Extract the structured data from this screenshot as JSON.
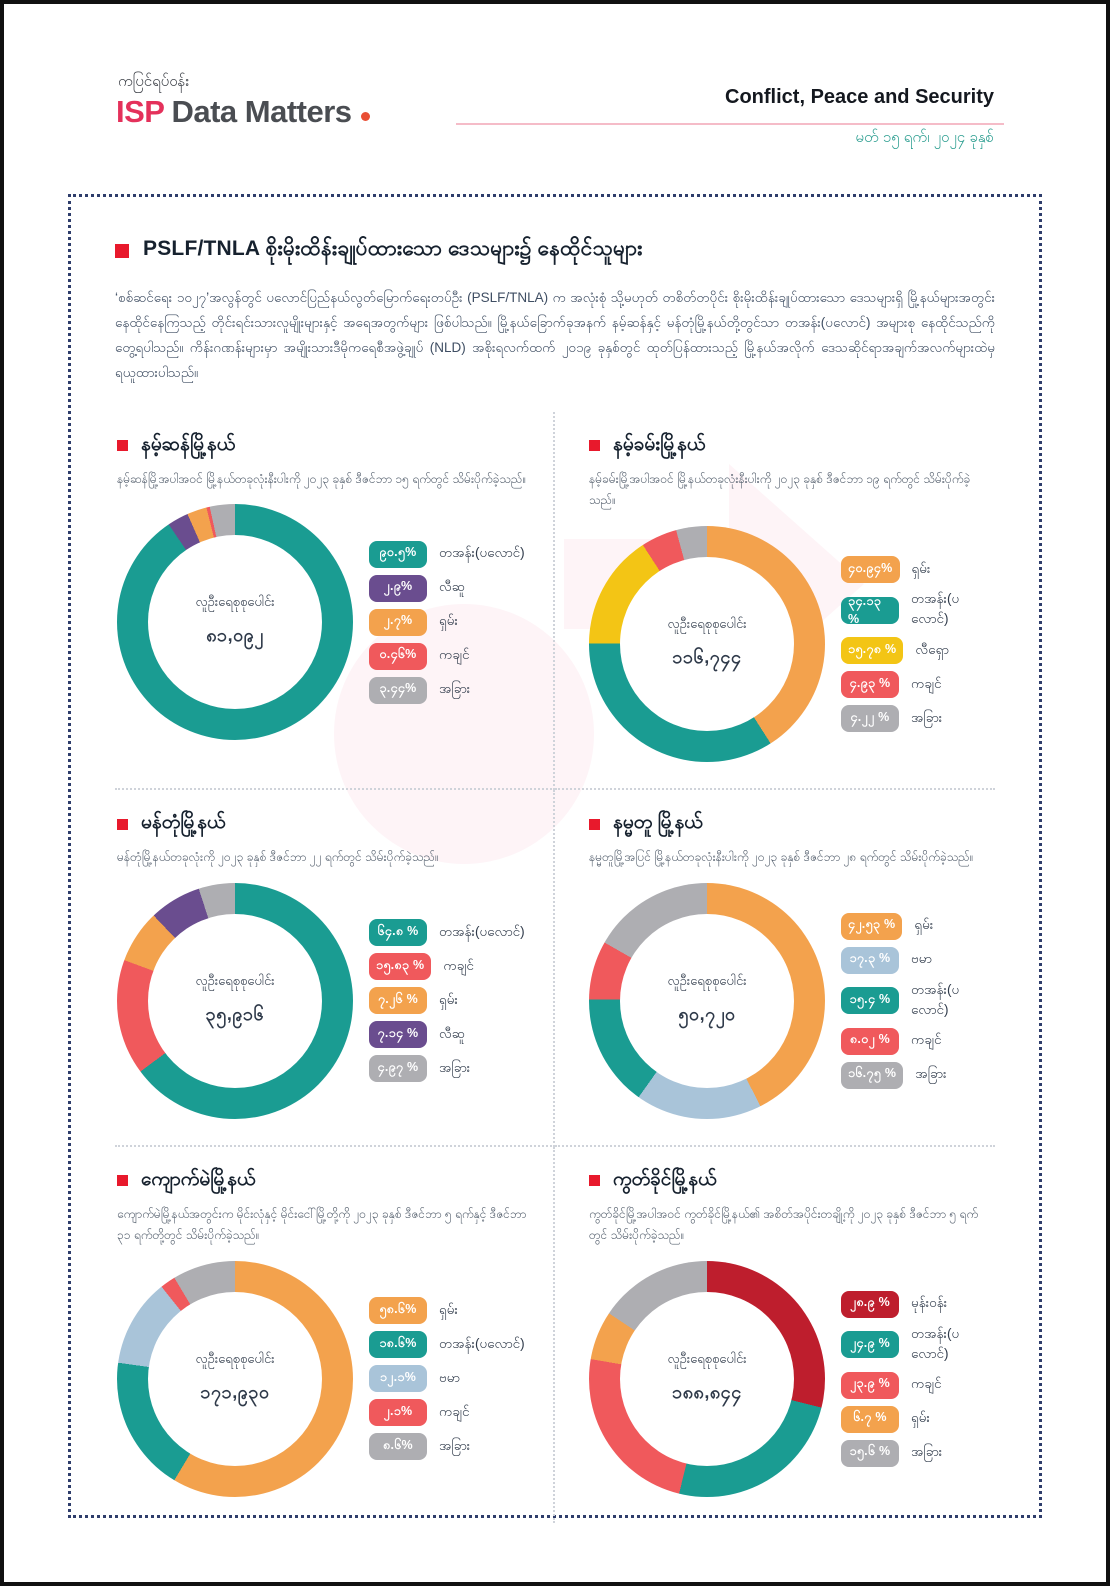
{
  "header": {
    "kicker": "ကပြင်ရပ်ဝန်း",
    "logo_isp": "ISP",
    "logo_rest": "Data Matters",
    "topic": "Conflict, Peace and Security",
    "date": "မတ် ၁၅ ရက်၊ ၂၀၂၄ ခုနှစ်"
  },
  "report": {
    "title": "PSLF/TNLA စိုးမိုးထိန်းချုပ်ထားသော ဒေသများ၌ နေထိုင်သူများ",
    "intro": "‘စစ်ဆင်ရေး ၁၀၂၇’အလွန်တွင် ပလောင်ပြည်နယ်လွတ်မြောက်ရေးတပ်ဦး (PSLF/TNLA) က အလုံးစုံ သို့မဟုတ် တစိတ်တပိုင်း စိုးမိုးထိန်းချုပ်ထားသော ဒေသများရှိ မြို့နယ်များအတွင်း နေထိုင်နေကြသည့် တိုင်းရင်းသားလူမျိုးများနှင့် အရေအတွက်များ ဖြစ်ပါသည်။ မြို့နယ်ခြောက်ခုအနက် နမ့်ဆန်နှင့် မန်တုံမြို့နယ်တို့တွင်သာ တအန်း(ပလောင်) အများစု နေထိုင်သည်ကို တွေ့ရပါသည်။ ကိန်းဂဏန်းများမှာ အမျိုးသားဒီမိုကရေစီအဖွဲ့ချုပ် (NLD) အစိုးရလက်ထက် ၂၀၁၉ ခုနှစ်တွင် ထုတ်ပြန်ထားသည့် မြို့နယ်အလိုက် ဒေသဆိုင်ရာအချက်အလက်များထဲမှ ရယူထားပါသည်။"
  },
  "colors": {
    "accent_red": "#E8192C",
    "brand_pink": "#E4315B",
    "brand_dot_orange": "#E94F35",
    "date_teal": "#2A9D8F",
    "dotted_border_navy": "#2E3D6B",
    "teal": "#1A9C92",
    "orange": "#F3A24D",
    "purple": "#6A4D8F",
    "red": "#F0595C",
    "gray": "#AEAEB2",
    "yellow": "#F3C515",
    "light_blue": "#A9C4D9",
    "crimson": "#BE1E2D"
  },
  "chart_data": [
    {
      "type": "pie",
      "title": "နမ့်ဆန်မြို့နယ်",
      "subtitle": "နမ့်ဆန်မြို့အပါအဝင် မြို့နယ်တခုလုံးနီးပါးကို ၂၀၂၃ ခုနှစ် ဒီဇင်ဘာ ၁၅ ရက်တွင် သိမ်းပိုက်ခဲ့သည်။",
      "center_label": "လူဦးရေစုစုပေါင်း",
      "total_label": "၈၁,၀၉၂",
      "total_value": 81092,
      "legend_position": "right",
      "slices": [
        {
          "label": "တအန်း(ပလောင်)",
          "pct_label": "၉၀.၅%",
          "value": 90.5,
          "color": "#1A9C92"
        },
        {
          "label": "လီဆူ",
          "pct_label": "၂.၉%",
          "value": 2.9,
          "color": "#6A4D8F"
        },
        {
          "label": "ရှမ်း",
          "pct_label": "၂.၇%",
          "value": 2.7,
          "color": "#F3A24D"
        },
        {
          "label": "ကချင်",
          "pct_label": "၀.၄၆%",
          "value": 0.46,
          "color": "#F0595C"
        },
        {
          "label": "အခြား",
          "pct_label": "၃.၄၄%",
          "value": 3.44,
          "color": "#AEAEB2"
        }
      ]
    },
    {
      "type": "pie",
      "title": "နမ့်ခမ်းမြို့နယ်",
      "subtitle": "နမ့်ခမ်းမြို့အပါအဝင် မြို့နယ်တခုလုံးနီးပါးကို ၂၀၂၃ ခုနှစ် ဒီဇင်ဘာ ၁၉ ရက်တွင် သိမ်းပိုက်ခဲ့သည်။",
      "center_label": "လူဦးရေစုစုပေါင်း",
      "total_label": "၁၁၆,၇၄၄",
      "total_value": 116744,
      "legend_position": "right",
      "slices": [
        {
          "label": "ရှမ်း",
          "pct_label": "၄၀.၉၄%",
          "value": 40.94,
          "color": "#F3A24D"
        },
        {
          "label": "တအန်း(ပလောင်)",
          "pct_label": "၃၄.၁၃ %",
          "value": 34.13,
          "color": "#1A9C92"
        },
        {
          "label": "လီရှော",
          "pct_label": "၁၅.၇၈ %",
          "value": 15.78,
          "color": "#F3C515"
        },
        {
          "label": "ကချင်",
          "pct_label": "၄.၉၃ %",
          "value": 4.93,
          "color": "#F0595C"
        },
        {
          "label": "အခြား",
          "pct_label": "၄.၂၂ %",
          "value": 4.22,
          "color": "#AEAEB2"
        }
      ]
    },
    {
      "type": "pie",
      "title": "မန်တုံမြို့နယ်",
      "subtitle": "မန်တုံမြို့နယ်တခုလုံးကို ၂၀၂၃ ခုနှစ် ဒီဇင်ဘာ ၂၂ ရက်တွင် သိမ်းပိုက်ခဲ့သည်။",
      "center_label": "လူဦးရေစုစုပေါင်း",
      "total_label": "၃၅,၉၁၆",
      "total_value": 35916,
      "legend_position": "right",
      "slices": [
        {
          "label": "တအန်း(ပလောင်)",
          "pct_label": "၆၄.၈ %",
          "value": 64.8,
          "color": "#1A9C92"
        },
        {
          "label": "ကချင်",
          "pct_label": "၁၅.၈၃ %",
          "value": 15.83,
          "color": "#F0595C"
        },
        {
          "label": "ရှမ်း",
          "pct_label": "၇.၂၆ %",
          "value": 7.26,
          "color": "#F3A24D"
        },
        {
          "label": "လီဆူ",
          "pct_label": "၇.၁၄ %",
          "value": 7.14,
          "color": "#6A4D8F"
        },
        {
          "label": "အခြား",
          "pct_label": "၄.၉၇ %",
          "value": 4.97,
          "color": "#AEAEB2"
        }
      ]
    },
    {
      "type": "pie",
      "title": "နမ္မတူ မြို့နယ်",
      "subtitle": "နမ္မတူမြို့အပြင် မြို့နယ်တခုလုံးနီးပါးကို ၂၀၂၃ ခုနှစ် ဒီဇင်ဘာ ၂၈ ရက်တွင် သိမ်းပိုက်ခဲ့သည်။",
      "center_label": "လူဦးရေစုစုပေါင်း",
      "total_label": "၅၀,၇၂၀",
      "total_value": 50720,
      "legend_position": "right",
      "slices": [
        {
          "label": "ရှမ်း",
          "pct_label": "၄၂.၅၃ %",
          "value": 42.53,
          "color": "#F3A24D"
        },
        {
          "label": "ဗမာ",
          "pct_label": "၁၇.၃ %",
          "value": 17.3,
          "color": "#A9C4D9"
        },
        {
          "label": "တအန်း(ပလောင်)",
          "pct_label": "၁၅.၄ %",
          "value": 15.4,
          "color": "#1A9C92"
        },
        {
          "label": "ကချင်",
          "pct_label": "၈.၀၂ %",
          "value": 8.02,
          "color": "#F0595C"
        },
        {
          "label": "အခြား",
          "pct_label": "၁၆.၇၅ %",
          "value": 16.75,
          "color": "#AEAEB2"
        }
      ]
    },
    {
      "type": "pie",
      "title": "ကျောက်မဲမြို့နယ်",
      "subtitle": "ကျောက်မဲမြို့နယ်အတွင်းက မိုင်းလုံနှင့် မိုင်းငေါ်မြို့တို့ကို ၂၀၂၃ ခုနှစ် ဒီဇင်ဘာ ၅ ရက်နှင့် ဒီဇင်ဘာ ၃၁ ရက်တို့တွင် သိမ်းပိုက်ခဲ့သည်။",
      "center_label": "လူဦးရေစုစုပေါင်း",
      "total_label": "၁၇၁,၉၃၀",
      "total_value": 171930,
      "legend_position": "right",
      "slices": [
        {
          "label": "ရှမ်း",
          "pct_label": "၅၈.၆%",
          "value": 58.6,
          "color": "#F3A24D"
        },
        {
          "label": "တအန်း(ပလောင်)",
          "pct_label": "၁၈.၆%",
          "value": 18.6,
          "color": "#1A9C92"
        },
        {
          "label": "ဗမာ",
          "pct_label": "၁၂.၁%",
          "value": 12.1,
          "color": "#A9C4D9"
        },
        {
          "label": "ကချင်",
          "pct_label": "၂.၁%",
          "value": 2.1,
          "color": "#F0595C"
        },
        {
          "label": "အခြား",
          "pct_label": "၈.၆%",
          "value": 8.6,
          "color": "#AEAEB2"
        }
      ]
    },
    {
      "type": "pie",
      "title": "ကွတ်ခိုင်မြို့နယ်",
      "subtitle": "ကွတ်ခိုင်မြို့အပါအဝင် ကွတ်ခိုင်မြို့နယ်၏ အစိတ်အပိုင်းတချို့ကို ၂၀၂၃ ခုနှစ် ဒီဇင်ဘာ ၅ ရက်တွင် သိမ်းပိုက်ခဲ့သည်။",
      "center_label": "လူဦးရေစုစုပေါင်း",
      "total_label": "၁၈၈,၈၄၄",
      "total_value": 188844,
      "legend_position": "right",
      "slices": [
        {
          "label": "မုန်းဝန်း",
          "pct_label": "၂၈.၉ %",
          "value": 28.9,
          "color": "#BE1E2D"
        },
        {
          "label": "တအန်း(ပလောင်)",
          "pct_label": "၂၄.၉ %",
          "value": 24.9,
          "color": "#1A9C92"
        },
        {
          "label": "ကချင်",
          "pct_label": "၂၃.၉ %",
          "value": 23.9,
          "color": "#F0595C"
        },
        {
          "label": "ရှမ်း",
          "pct_label": "၆.၇ %",
          "value": 6.7,
          "color": "#F3A24D"
        },
        {
          "label": "အခြား",
          "pct_label": "၁၅.၆ %",
          "value": 15.6,
          "color": "#AEAEB2"
        }
      ]
    }
  ]
}
